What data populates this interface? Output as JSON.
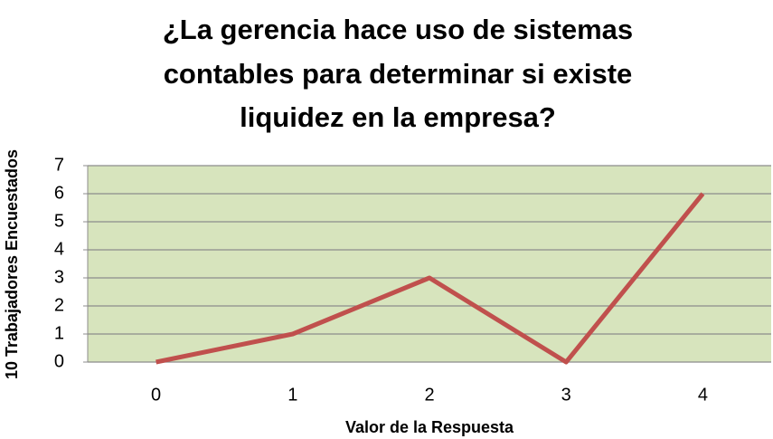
{
  "chart_data": {
    "type": "line",
    "title": [
      "¿La gerencia hace uso de sistemas",
      "contables para determinar si existe",
      "liquidez en la empresa?"
    ],
    "x_label": "Valor de la Respuesta",
    "y_label": "10 Trabajadores Encuestados",
    "categories": [
      "0",
      "1",
      "2",
      "3",
      "4"
    ],
    "values": [
      0,
      1,
      3,
      0,
      6
    ],
    "color": "#c0504d",
    "plot_background": "#d7e4bd",
    "ylim": [
      0,
      7
    ],
    "yticks": [
      0,
      1,
      2,
      3,
      4,
      5,
      6,
      7
    ],
    "grid": true
  }
}
